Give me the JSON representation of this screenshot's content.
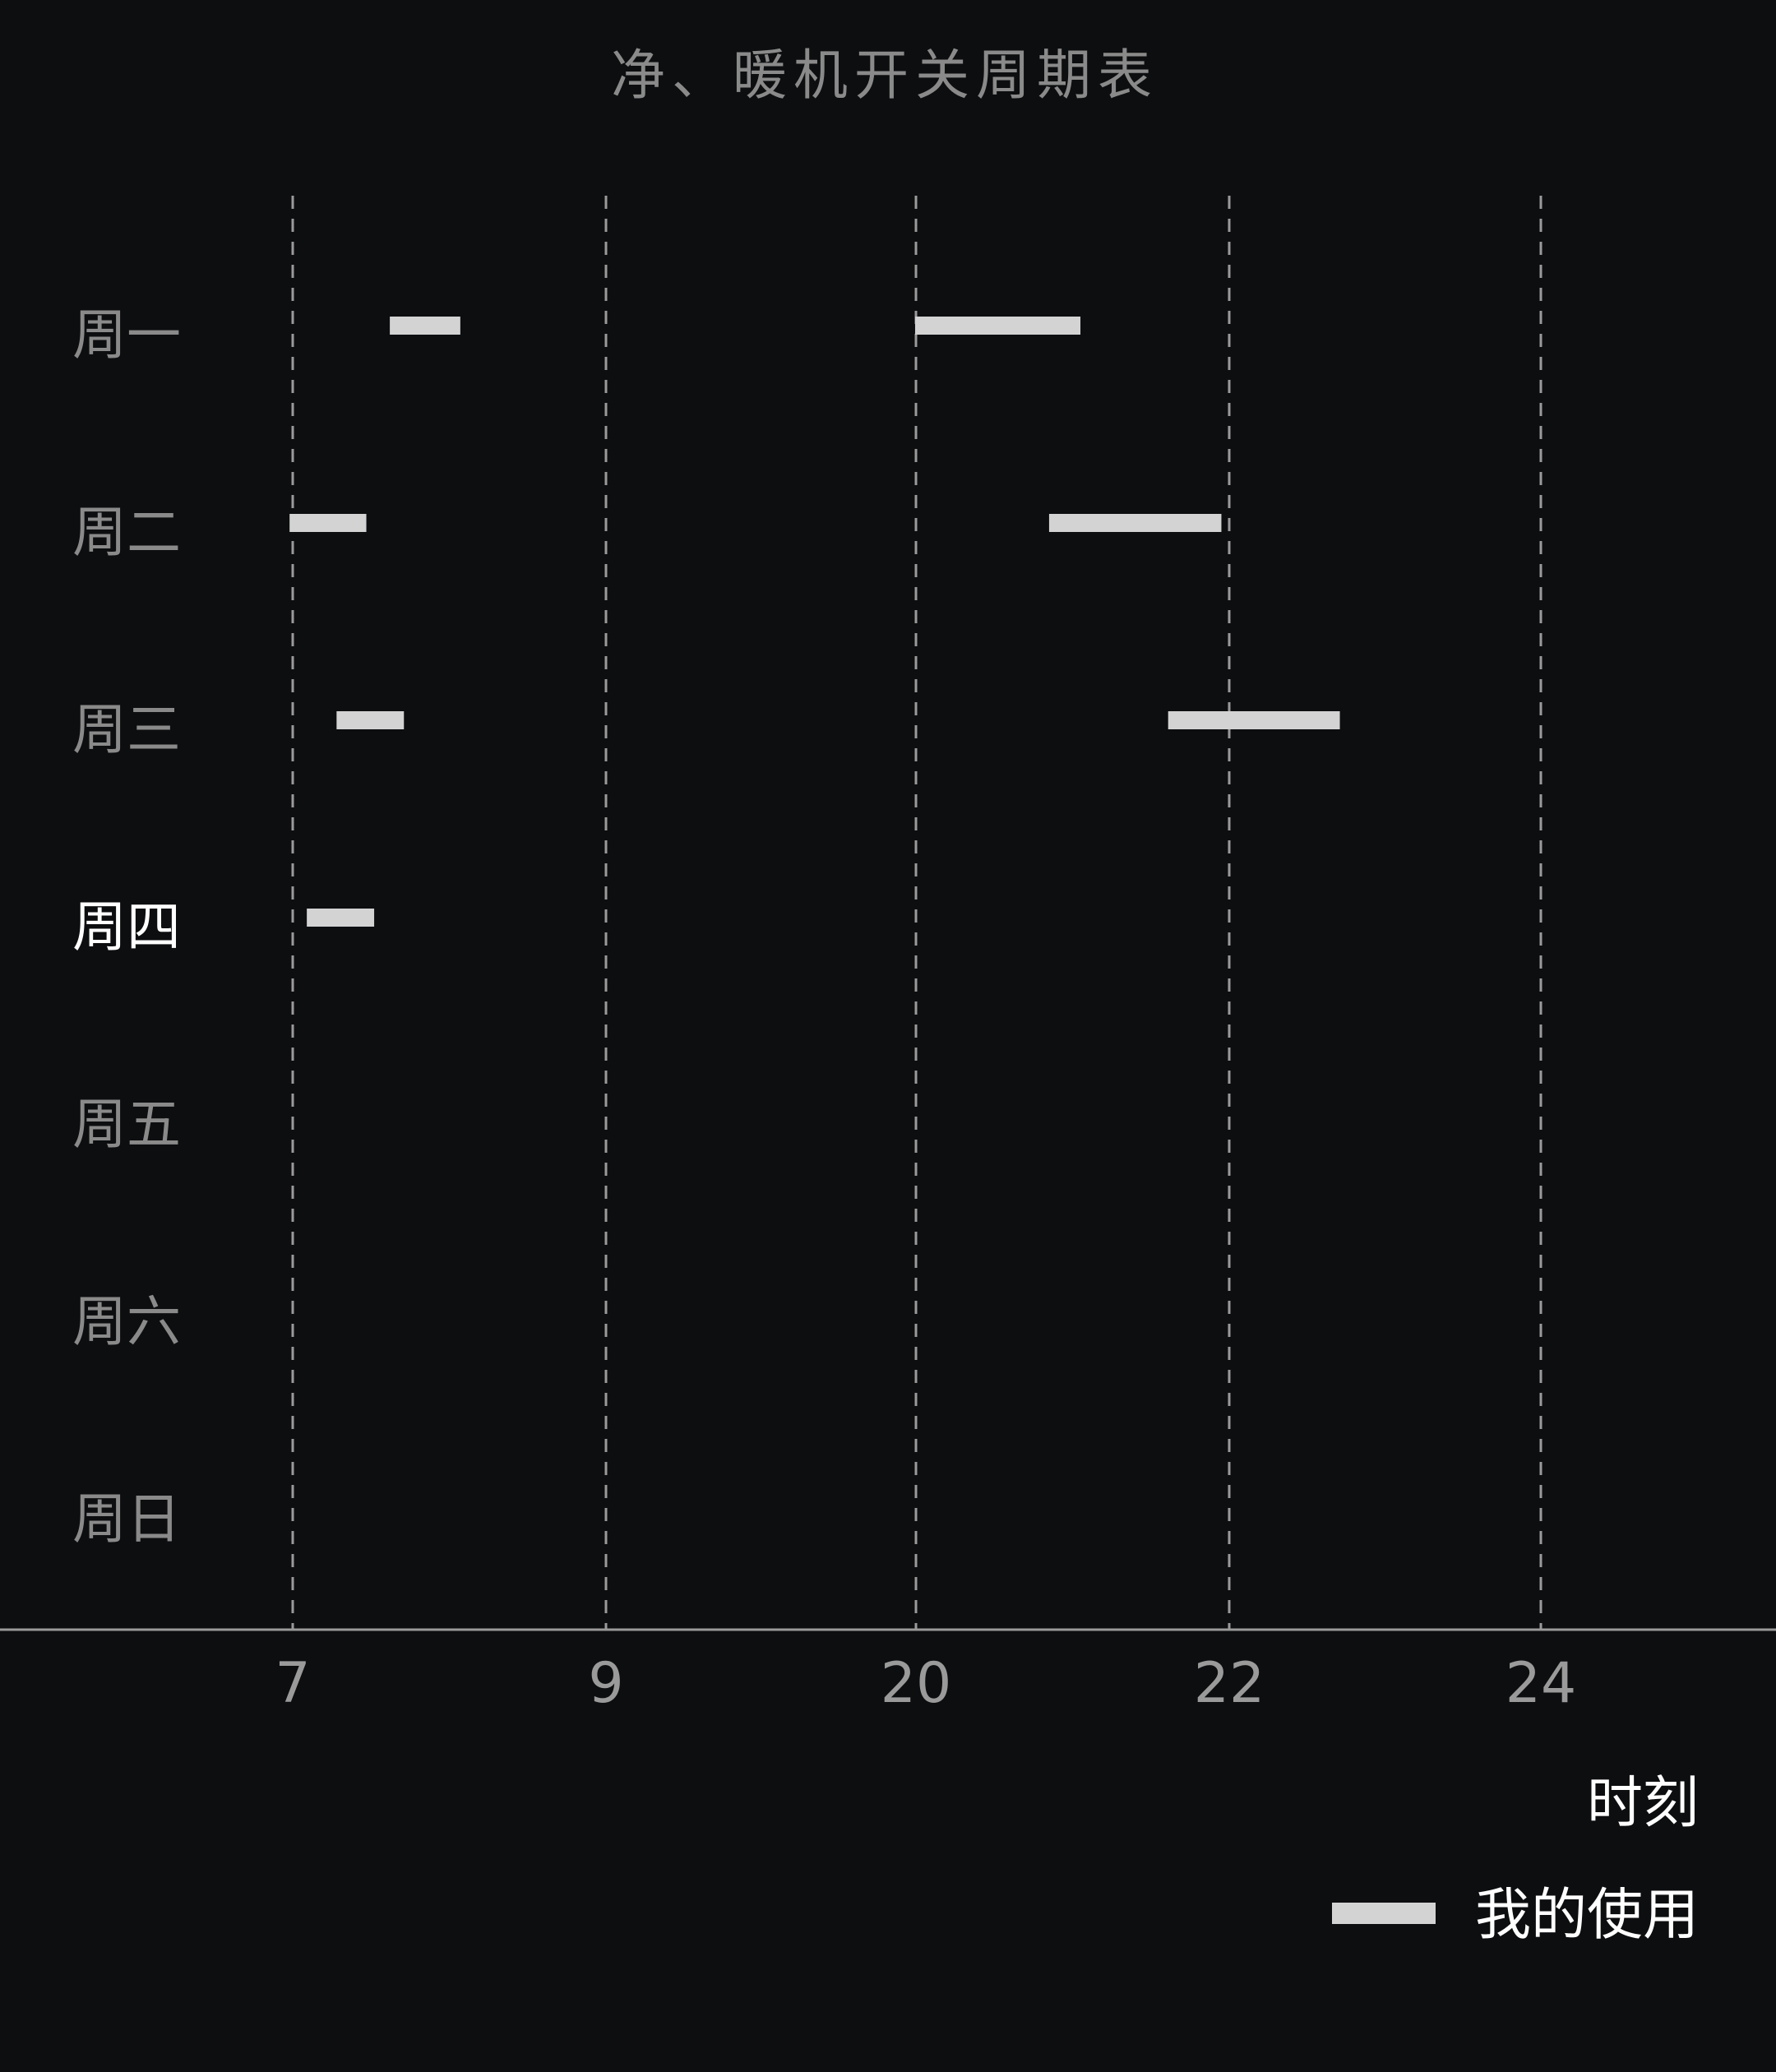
{
  "chart_data": {
    "type": "bar",
    "orientation": "horizontal-range",
    "title": "净、暖机开关周期表",
    "xlabel": "时刻",
    "ylabel": "",
    "x_ticks": [
      "7",
      "9",
      "20",
      "22",
      "24"
    ],
    "x_tick_values": [
      7,
      9,
      20,
      22,
      24
    ],
    "categories": [
      "周一",
      "周二",
      "周三",
      "周四",
      "周五",
      "周六",
      "周日"
    ],
    "highlight_category": "周四",
    "grid": true,
    "legend": {
      "placement": "bottom-right",
      "color": "#d3d3d3"
    },
    "series": [
      {
        "name": "我的使用",
        "color": "#d3d3d3",
        "ranges": [
          {
            "day": "周一",
            "start": 7.62,
            "end": 8.07
          },
          {
            "day": "周一",
            "start": 19.97,
            "end": 21.05
          },
          {
            "day": "周二",
            "start": 6.98,
            "end": 7.47
          },
          {
            "day": "周二",
            "start": 20.85,
            "end": 21.95
          },
          {
            "day": "周三",
            "start": 7.28,
            "end": 7.71
          },
          {
            "day": "周三",
            "start": 21.61,
            "end": 22.71
          },
          {
            "day": "周四",
            "start": 7.09,
            "end": 7.52
          }
        ]
      }
    ]
  },
  "colors": {
    "background": "#0d0e10",
    "muted_text": "#8a8a8a",
    "highlight_text": "#ffffff",
    "bar": "#d3d3d3"
  }
}
